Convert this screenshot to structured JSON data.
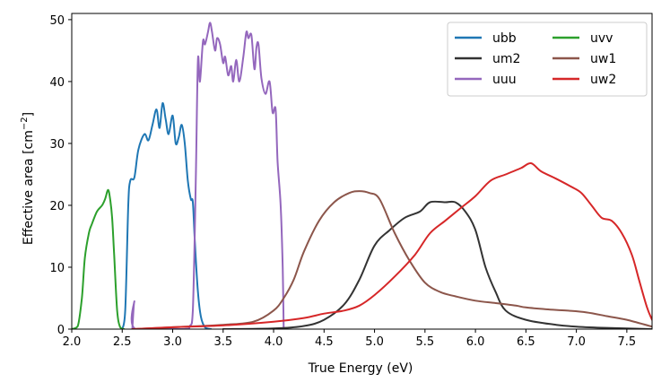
{
  "chart_data": {
    "type": "line",
    "title": "",
    "xlabel": "True Energy (eV)",
    "ylabel_prefix": "Effective area [cm",
    "ylabel_exp": "−2",
    "ylabel_suffix": "]",
    "xlim": [
      2.0,
      7.75
    ],
    "ylim": [
      0,
      51
    ],
    "xticks": [
      "2.0",
      "2.5",
      "3.0",
      "3.5",
      "4.0",
      "4.5",
      "5.0",
      "5.5",
      "6.0",
      "6.5",
      "7.0",
      "7.5"
    ],
    "yticks": [
      "0",
      "10",
      "20",
      "30",
      "40",
      "50"
    ],
    "series": [
      {
        "name": "ubb",
        "color": "#1f77b4",
        "points": [
          [
            2.5,
            0
          ],
          [
            2.53,
            3
          ],
          [
            2.56,
            20
          ],
          [
            2.58,
            24
          ],
          [
            2.62,
            24.5
          ],
          [
            2.66,
            29
          ],
          [
            2.72,
            31.5
          ],
          [
            2.76,
            30.5
          ],
          [
            2.8,
            33
          ],
          [
            2.84,
            35.5
          ],
          [
            2.87,
            32.5
          ],
          [
            2.9,
            36.5
          ],
          [
            2.93,
            34
          ],
          [
            2.96,
            31.5
          ],
          [
            3.0,
            34.5
          ],
          [
            3.03,
            30
          ],
          [
            3.06,
            31
          ],
          [
            3.09,
            33
          ],
          [
            3.12,
            30
          ],
          [
            3.15,
            24
          ],
          [
            3.18,
            21
          ],
          [
            3.2,
            20.5
          ],
          [
            3.22,
            14
          ],
          [
            3.25,
            6
          ],
          [
            3.28,
            2
          ],
          [
            3.32,
            0.3
          ],
          [
            3.38,
            0
          ]
        ]
      },
      {
        "name": "uvv",
        "color": "#2ca02c",
        "points": [
          [
            2.0,
            0
          ],
          [
            2.06,
            0.5
          ],
          [
            2.1,
            5
          ],
          [
            2.13,
            11.5
          ],
          [
            2.17,
            15.5
          ],
          [
            2.2,
            17
          ],
          [
            2.25,
            19
          ],
          [
            2.3,
            20
          ],
          [
            2.33,
            21
          ],
          [
            2.36,
            22.5
          ],
          [
            2.38,
            21
          ],
          [
            2.4,
            18
          ],
          [
            2.42,
            12
          ],
          [
            2.45,
            3
          ],
          [
            2.48,
            0.3
          ],
          [
            2.52,
            0
          ]
        ]
      },
      {
        "name": "uuu",
        "color": "#9467bd",
        "points": [
          [
            2.6,
            0
          ],
          [
            2.62,
            4.5
          ],
          [
            2.63,
            0
          ],
          [
            3.1,
            0
          ],
          [
            3.17,
            0.5
          ],
          [
            3.2,
            3
          ],
          [
            3.23,
            25
          ],
          [
            3.25,
            43.5
          ],
          [
            3.27,
            40
          ],
          [
            3.3,
            46.5
          ],
          [
            3.32,
            46
          ],
          [
            3.35,
            48
          ],
          [
            3.37,
            49.5
          ],
          [
            3.39,
            48
          ],
          [
            3.42,
            45
          ],
          [
            3.44,
            47
          ],
          [
            3.47,
            46
          ],
          [
            3.5,
            43
          ],
          [
            3.52,
            44
          ],
          [
            3.55,
            41
          ],
          [
            3.58,
            42.5
          ],
          [
            3.6,
            40
          ],
          [
            3.63,
            43.5
          ],
          [
            3.66,
            40
          ],
          [
            3.7,
            44
          ],
          [
            3.73,
            48
          ],
          [
            3.75,
            47
          ],
          [
            3.78,
            47.5
          ],
          [
            3.81,
            42
          ],
          [
            3.83,
            45.5
          ],
          [
            3.85,
            46
          ],
          [
            3.88,
            40.5
          ],
          [
            3.92,
            38
          ],
          [
            3.96,
            40
          ],
          [
            3.99,
            35
          ],
          [
            4.02,
            35.5
          ],
          [
            4.04,
            27
          ],
          [
            4.07,
            20
          ],
          [
            4.09,
            10
          ],
          [
            4.1,
            0
          ]
        ]
      },
      {
        "name": "um2",
        "color": "#333333",
        "points": [
          [
            3.5,
            0
          ],
          [
            4.0,
            0.1
          ],
          [
            4.3,
            0.5
          ],
          [
            4.5,
            1.5
          ],
          [
            4.7,
            4
          ],
          [
            4.85,
            8
          ],
          [
            5.0,
            13.5
          ],
          [
            5.15,
            16
          ],
          [
            5.3,
            18
          ],
          [
            5.45,
            19
          ],
          [
            5.55,
            20.5
          ],
          [
            5.7,
            20.5
          ],
          [
            5.8,
            20.5
          ],
          [
            5.9,
            19
          ],
          [
            6.0,
            16
          ],
          [
            6.1,
            10
          ],
          [
            6.2,
            6
          ],
          [
            6.3,
            3
          ],
          [
            6.5,
            1.5
          ],
          [
            6.8,
            0.7
          ],
          [
            7.0,
            0.4
          ],
          [
            7.3,
            0.2
          ],
          [
            7.75,
            0
          ]
        ]
      },
      {
        "name": "uw1",
        "color": "#8c564b",
        "points": [
          [
            2.6,
            0
          ],
          [
            3.0,
            0.3
          ],
          [
            3.5,
            0.7
          ],
          [
            3.8,
            1.2
          ],
          [
            4.0,
            3
          ],
          [
            4.1,
            5
          ],
          [
            4.2,
            8
          ],
          [
            4.3,
            12.5
          ],
          [
            4.45,
            17.5
          ],
          [
            4.6,
            20.5
          ],
          [
            4.75,
            22
          ],
          [
            4.85,
            22.3
          ],
          [
            4.95,
            22
          ],
          [
            5.05,
            21
          ],
          [
            5.2,
            15.5
          ],
          [
            5.35,
            11
          ],
          [
            5.5,
            7.5
          ],
          [
            5.65,
            6
          ],
          [
            5.8,
            5.3
          ],
          [
            6.0,
            4.6
          ],
          [
            6.2,
            4.2
          ],
          [
            6.4,
            3.8
          ],
          [
            6.5,
            3.5
          ],
          [
            6.7,
            3.2
          ],
          [
            6.9,
            3
          ],
          [
            7.1,
            2.7
          ],
          [
            7.3,
            2.1
          ],
          [
            7.5,
            1.5
          ],
          [
            7.75,
            0.4
          ]
        ]
      },
      {
        "name": "uw2",
        "color": "#d62728",
        "points": [
          [
            2.6,
            0
          ],
          [
            3.0,
            0.3
          ],
          [
            3.5,
            0.6
          ],
          [
            4.0,
            1.2
          ],
          [
            4.3,
            1.8
          ],
          [
            4.5,
            2.5
          ],
          [
            4.7,
            3
          ],
          [
            4.85,
            3.8
          ],
          [
            5.0,
            5.5
          ],
          [
            5.2,
            8.5
          ],
          [
            5.4,
            12
          ],
          [
            5.55,
            15.5
          ],
          [
            5.7,
            17.5
          ],
          [
            5.85,
            19.5
          ],
          [
            6.0,
            21.5
          ],
          [
            6.15,
            24
          ],
          [
            6.3,
            25
          ],
          [
            6.45,
            26
          ],
          [
            6.55,
            26.8
          ],
          [
            6.65,
            25.5
          ],
          [
            6.8,
            24.3
          ],
          [
            6.95,
            23
          ],
          [
            7.05,
            22
          ],
          [
            7.15,
            20
          ],
          [
            7.25,
            18
          ],
          [
            7.35,
            17.5
          ],
          [
            7.45,
            15.5
          ],
          [
            7.55,
            12
          ],
          [
            7.62,
            8
          ],
          [
            7.7,
            3.5
          ],
          [
            7.75,
            1.5
          ]
        ]
      }
    ],
    "legend": {
      "position": "top-right",
      "columns": 2,
      "order": [
        "ubb",
        "uvv",
        "um2",
        "uw1",
        "uuu",
        "uw2"
      ]
    }
  }
}
